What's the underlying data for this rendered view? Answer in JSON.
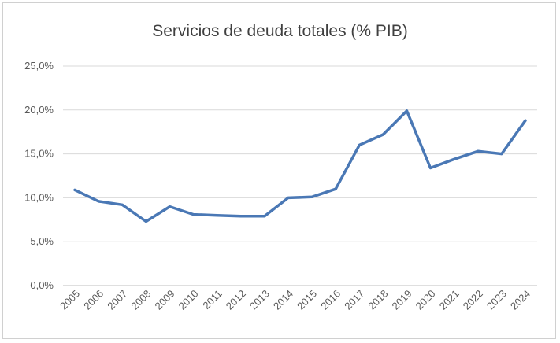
{
  "chart_data": {
    "type": "line",
    "title": "Servicios de deuda totales (% PIB)",
    "xlabel": "",
    "ylabel": "",
    "categories": [
      "2005",
      "2006",
      "2007",
      "2008",
      "2009",
      "2010",
      "2011",
      "2012",
      "2013",
      "2014",
      "2015",
      "2016",
      "2017",
      "2018",
      "2019",
      "2020",
      "2021",
      "2022",
      "2023",
      "2024"
    ],
    "series": [
      {
        "values": [
          10.9,
          9.6,
          9.2,
          7.3,
          9.0,
          8.1,
          8.0,
          7.9,
          7.9,
          10.0,
          10.1,
          11.0,
          16.0,
          17.2,
          19.9,
          13.4,
          14.4,
          15.3,
          15.0,
          18.8
        ],
        "color": "#4a78b5"
      }
    ],
    "ylim": [
      0,
      25
    ],
    "yticks": [
      "0,0%",
      "5,0%",
      "10,0%",
      "15,0%",
      "20,0%",
      "25,0%"
    ],
    "grid": true,
    "legend": "none"
  }
}
